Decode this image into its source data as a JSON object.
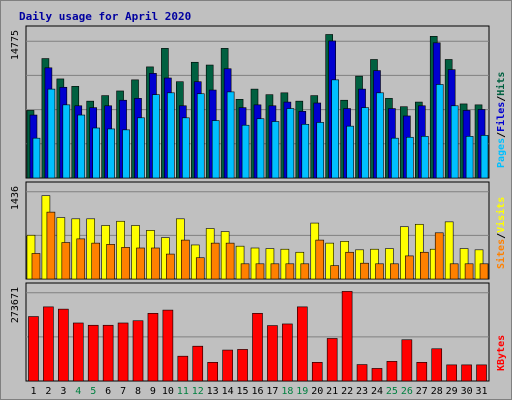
{
  "chart_data": {
    "type": "bar",
    "title": "Daily usage for April 2020",
    "categories": [
      "1",
      "2",
      "3",
      "4",
      "5",
      "6",
      "7",
      "8",
      "9",
      "10",
      "11",
      "12",
      "13",
      "14",
      "15",
      "16",
      "17",
      "18",
      "19",
      "20",
      "21",
      "22",
      "23",
      "24",
      "25",
      "26",
      "27",
      "28",
      "29",
      "30",
      "31"
    ],
    "weekend_days": [
      "4",
      "5",
      "11",
      "12",
      "18",
      "19",
      "25",
      "26"
    ],
    "panels": [
      {
        "id": "hits-files-pages",
        "ymax_label": "14775",
        "ylim": [
          0,
          14775
        ],
        "series": [
          {
            "name": "Hits",
            "color": "#006040",
            "values": [
              7300,
              12900,
              10700,
              9900,
              8300,
              8900,
              9400,
              10600,
              12000,
              14000,
              10400,
              12500,
              12200,
              14000,
              8500,
              9600,
              9000,
              9200,
              8300,
              8900,
              15500,
              8400,
              11000,
              12800,
              8600,
              7700,
              8200,
              15300,
              12800,
              8000,
              7900
            ]
          },
          {
            "name": "Files",
            "color": "#0000d0",
            "values": [
              6800,
              11900,
              9800,
              7800,
              7600,
              7800,
              8400,
              8600,
              11300,
              10800,
              7800,
              10400,
              9500,
              11800,
              7600,
              7900,
              7800,
              8200,
              7200,
              8100,
              14800,
              7500,
              9600,
              11600,
              7500,
              6700,
              7800,
              14600,
              11700,
              7300,
              7400
            ]
          },
          {
            "name": "Pages",
            "color": "#00c0ff",
            "values": [
              4300,
              9600,
              7900,
              6800,
              5400,
              5300,
              5200,
              6500,
              9000,
              9200,
              6500,
              9100,
              6200,
              9300,
              5700,
              6400,
              6100,
              7500,
              5800,
              6000,
              10600,
              5600,
              7600,
              9200,
              4300,
              4400,
              4500,
              10100,
              7800,
              4500,
              4600
            ]
          }
        ]
      },
      {
        "id": "visits-sites",
        "ymax_label": "1436",
        "ylim": [
          0,
          1436
        ],
        "series": [
          {
            "name": "Visits",
            "color": "#ffff00",
            "values": [
              720,
              1370,
              1010,
              990,
              990,
              880,
              950,
              880,
              800,
              680,
              990,
              560,
              830,
              780,
              540,
              510,
              500,
              490,
              440,
              920,
              590,
              620,
              480,
              490,
              500,
              860,
              900,
              490,
              940,
              500,
              480
            ]
          },
          {
            "name": "Sites",
            "color": "#ff8000",
            "values": [
              420,
              1100,
              600,
              660,
              590,
              570,
              520,
              510,
              510,
              410,
              640,
              350,
              590,
              590,
              250,
              250,
              250,
              250,
              250,
              640,
              220,
              440,
              260,
              250,
              250,
              380,
              440,
              760,
              250,
              250,
              250
            ]
          }
        ]
      },
      {
        "id": "kbytes",
        "ymax_label": "273671",
        "ylim": [
          0,
          273671
        ],
        "series": [
          {
            "name": "KBytes",
            "color": "#ff0000",
            "values": [
              200000,
              230000,
              223000,
              180000,
              173000,
              173000,
              180000,
              187000,
              210000,
              220000,
              77000,
              108000,
              58000,
              96000,
              98000,
              210000,
              172000,
              177000,
              230000,
              58000,
              132000,
              278000,
              51000,
              39000,
              61000,
              128000,
              58000,
              100000,
              50000,
              50000,
              50000
            ]
          }
        ]
      }
    ],
    "legend_right": [
      {
        "panel": "hits-files-pages",
        "entries": [
          {
            "label": "Pages",
            "color": "#00c0ff"
          },
          {
            "label": "/",
            "color": "#000000"
          },
          {
            "label": "Files",
            "color": "#0000d0"
          },
          {
            "label": "/",
            "color": "#000000"
          },
          {
            "label": "Hits",
            "color": "#006040"
          }
        ]
      },
      {
        "panel": "visits-sites",
        "entries": [
          {
            "label": "Sites",
            "color": "#ff8000"
          },
          {
            "label": "/",
            "color": "#000000"
          },
          {
            "label": "Visits",
            "color": "#ffff00"
          }
        ]
      },
      {
        "panel": "kbytes",
        "entries": [
          {
            "label": "KBytes",
            "color": "#ff0000"
          }
        ]
      }
    ],
    "colors": {
      "background": "#c0c0c0",
      "title": "#0000a0",
      "weekday_label": "#000000",
      "weekend_label": "#008040"
    },
    "grid": true
  }
}
